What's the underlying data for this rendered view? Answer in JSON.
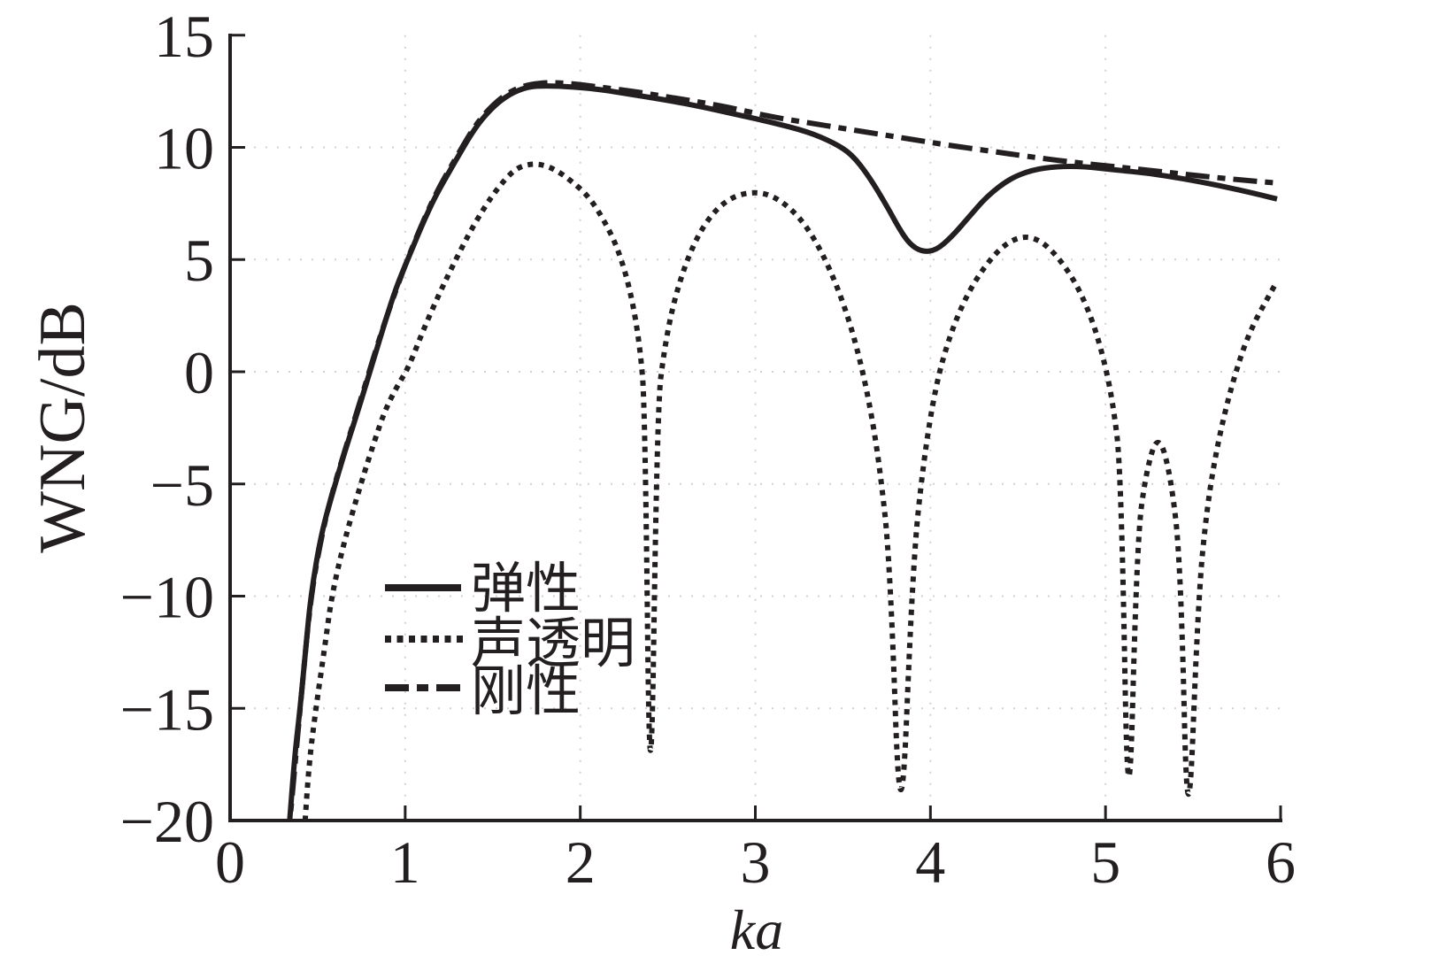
{
  "figure": {
    "background": "#ffffff",
    "ink_color": "#231f20",
    "grid_color": "#9a9a9a"
  },
  "chart_data": {
    "type": "line",
    "title": "",
    "xlabel": "ka",
    "ylabel": "WNG/dB",
    "xlim": [
      0,
      6
    ],
    "ylim": [
      -20,
      15
    ],
    "x_ticks": [
      0,
      1,
      2,
      3,
      4,
      5,
      6
    ],
    "y_ticks": [
      15,
      10,
      5,
      0,
      -5,
      -10,
      -15,
      -20
    ],
    "x_tick_labels": [
      "0",
      "1",
      "2",
      "3",
      "4",
      "5",
      "6"
    ],
    "y_tick_labels": [
      "15",
      "10",
      "5",
      "0",
      "−5",
      "−10",
      "−15",
      "−20"
    ],
    "grid": {
      "visible": true,
      "style": "light dotted at every tick"
    },
    "legend": {
      "position": "inside lower-left",
      "border": "none",
      "items": [
        {
          "label": "弹性",
          "line_style": "solid"
        },
        {
          "label": "声透明",
          "line_style": "dotted"
        },
        {
          "label": "刚性",
          "line_style": "dash-dot"
        }
      ]
    },
    "series": [
      {
        "name": "弹性",
        "style": "solid",
        "points": [
          [
            0.33,
            -21
          ],
          [
            0.37,
            -17
          ],
          [
            0.4,
            -15
          ],
          [
            0.43,
            -12.5
          ],
          [
            0.46,
            -10
          ],
          [
            0.52,
            -7.2
          ],
          [
            0.6,
            -5.0
          ],
          [
            0.67,
            -3.2
          ],
          [
            0.74,
            -1.5
          ],
          [
            0.81,
            0.3
          ],
          [
            0.88,
            2.1
          ],
          [
            0.95,
            3.8
          ],
          [
            1.03,
            5.3
          ],
          [
            1.1,
            6.6
          ],
          [
            1.17,
            7.8
          ],
          [
            1.28,
            9.3
          ],
          [
            1.4,
            10.9
          ],
          [
            1.5,
            11.8
          ],
          [
            1.6,
            12.4
          ],
          [
            1.7,
            12.7
          ],
          [
            1.8,
            12.75
          ],
          [
            1.95,
            12.7
          ],
          [
            2.1,
            12.6
          ],
          [
            2.3,
            12.35
          ],
          [
            2.5,
            12.1
          ],
          [
            2.7,
            11.8
          ],
          [
            2.9,
            11.45
          ],
          [
            3.1,
            11.1
          ],
          [
            3.3,
            10.7
          ],
          [
            3.45,
            10.2
          ],
          [
            3.55,
            9.7
          ],
          [
            3.65,
            8.7
          ],
          [
            3.75,
            7.4
          ],
          [
            3.82,
            6.4
          ],
          [
            3.88,
            5.7
          ],
          [
            3.95,
            5.35
          ],
          [
            4.03,
            5.4
          ],
          [
            4.12,
            6.0
          ],
          [
            4.22,
            6.9
          ],
          [
            4.32,
            7.8
          ],
          [
            4.45,
            8.6
          ],
          [
            4.58,
            9.0
          ],
          [
            4.72,
            9.15
          ],
          [
            4.88,
            9.15
          ],
          [
            5.05,
            9.0
          ],
          [
            5.25,
            8.85
          ],
          [
            5.45,
            8.6
          ],
          [
            5.65,
            8.3
          ],
          [
            5.85,
            7.95
          ],
          [
            5.98,
            7.7
          ]
        ]
      },
      {
        "name": "声透明",
        "style": "dotted",
        "points": [
          [
            0.42,
            -21
          ],
          [
            0.45,
            -17.5
          ],
          [
            0.49,
            -15
          ],
          [
            0.54,
            -12.3
          ],
          [
            0.58,
            -10
          ],
          [
            0.65,
            -7.6
          ],
          [
            0.75,
            -4.9
          ],
          [
            0.82,
            -3.2
          ],
          [
            0.88,
            -1.8
          ],
          [
            0.95,
            -0.7
          ],
          [
            1.02,
            0.2
          ],
          [
            1.1,
            1.8
          ],
          [
            1.19,
            3.4
          ],
          [
            1.27,
            4.7
          ],
          [
            1.36,
            6.1
          ],
          [
            1.45,
            7.3
          ],
          [
            1.53,
            8.2
          ],
          [
            1.62,
            9.0
          ],
          [
            1.7,
            9.25
          ],
          [
            1.78,
            9.25
          ],
          [
            1.86,
            9.0
          ],
          [
            1.95,
            8.5
          ],
          [
            2.05,
            7.8
          ],
          [
            2.14,
            6.7
          ],
          [
            2.22,
            5.4
          ],
          [
            2.29,
            3.5
          ],
          [
            2.34,
            1.2
          ],
          [
            2.37,
            -1.5
          ],
          [
            2.4,
            -22
          ],
          [
            2.44,
            -1.5
          ],
          [
            2.48,
            1.0
          ],
          [
            2.53,
            3.0
          ],
          [
            2.6,
            4.8
          ],
          [
            2.68,
            6.2
          ],
          [
            2.77,
            7.2
          ],
          [
            2.87,
            7.8
          ],
          [
            2.97,
            8.0
          ],
          [
            3.06,
            7.95
          ],
          [
            3.15,
            7.6
          ],
          [
            3.25,
            6.9
          ],
          [
            3.34,
            5.9
          ],
          [
            3.43,
            4.5
          ],
          [
            3.51,
            2.9
          ],
          [
            3.58,
            1.1
          ],
          [
            3.65,
            -1.3
          ],
          [
            3.71,
            -4.2
          ],
          [
            3.77,
            -8.5
          ],
          [
            3.83,
            -22
          ],
          [
            3.9,
            -8.5
          ],
          [
            3.96,
            -4.0
          ],
          [
            4.03,
            -0.6
          ],
          [
            4.11,
            1.6
          ],
          [
            4.2,
            3.3
          ],
          [
            4.3,
            4.6
          ],
          [
            4.41,
            5.6
          ],
          [
            4.52,
            6.05
          ],
          [
            4.62,
            5.9
          ],
          [
            4.72,
            5.2
          ],
          [
            4.82,
            4.1
          ],
          [
            4.9,
            2.8
          ],
          [
            4.97,
            1.2
          ],
          [
            5.04,
            -1.2
          ],
          [
            5.09,
            -4.5
          ],
          [
            5.13,
            -22
          ],
          [
            5.18,
            -7.5
          ],
          [
            5.23,
            -4.5
          ],
          [
            5.3,
            -2.7
          ],
          [
            5.37,
            -4.5
          ],
          [
            5.43,
            -8.5
          ],
          [
            5.47,
            -22
          ],
          [
            5.53,
            -10
          ],
          [
            5.58,
            -6.0
          ],
          [
            5.64,
            -3.2
          ],
          [
            5.72,
            -0.6
          ],
          [
            5.82,
            1.8
          ],
          [
            5.97,
            3.9
          ]
        ]
      },
      {
        "name": "刚性",
        "style": "dashdot",
        "points": [
          [
            0.33,
            -21
          ],
          [
            0.4,
            -15
          ],
          [
            0.46,
            -10
          ],
          [
            0.53,
            -7.0
          ],
          [
            0.6,
            -4.9
          ],
          [
            0.74,
            -1.4
          ],
          [
            0.88,
            2.2
          ],
          [
            1.03,
            5.4
          ],
          [
            1.17,
            7.9
          ],
          [
            1.28,
            9.4
          ],
          [
            1.4,
            11.0
          ],
          [
            1.5,
            11.9
          ],
          [
            1.6,
            12.5
          ],
          [
            1.7,
            12.8
          ],
          [
            1.82,
            12.9
          ],
          [
            1.95,
            12.85
          ],
          [
            2.1,
            12.7
          ],
          [
            2.3,
            12.5
          ],
          [
            2.5,
            12.25
          ],
          [
            2.7,
            12.0
          ],
          [
            2.9,
            11.7
          ],
          [
            3.1,
            11.35
          ],
          [
            3.3,
            11.1
          ],
          [
            3.5,
            10.85
          ],
          [
            3.7,
            10.6
          ],
          [
            3.9,
            10.35
          ],
          [
            4.1,
            10.1
          ],
          [
            4.33,
            9.85
          ],
          [
            4.55,
            9.6
          ],
          [
            4.8,
            9.35
          ],
          [
            5.1,
            9.1
          ],
          [
            5.4,
            8.85
          ],
          [
            5.7,
            8.6
          ],
          [
            6.0,
            8.4
          ]
        ]
      }
    ]
  }
}
